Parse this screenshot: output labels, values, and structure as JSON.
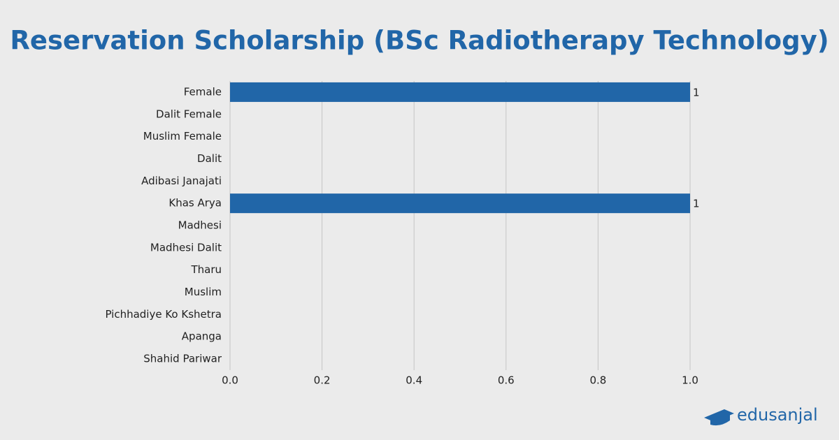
{
  "chart_data": {
    "type": "hbar",
    "title": "Reservation Scholarship (BSc Radiotherapy Technology)",
    "categories": [
      "Female",
      "Dalit Female",
      "Muslim Female",
      "Dalit",
      "Adibasi Janajati",
      "Khas Arya",
      "Madhesi",
      "Madhesi Dalit",
      "Tharu",
      "Muslim",
      "Pichhadiye Ko Kshetra",
      "Apanga",
      "Shahid Pariwar"
    ],
    "values": [
      1,
      0,
      0,
      0,
      0,
      1,
      0,
      0,
      0,
      0,
      0,
      0,
      0
    ],
    "color": "#2166a8",
    "xlim": [
      0,
      1
    ],
    "xticks": [
      {
        "value": 0,
        "label": "0.0"
      },
      0.2,
      0.4,
      0.6,
      0.8,
      {
        "value": 1,
        "label": "1.0"
      }
    ],
    "grid": true
  },
  "brand": "edusanjal"
}
